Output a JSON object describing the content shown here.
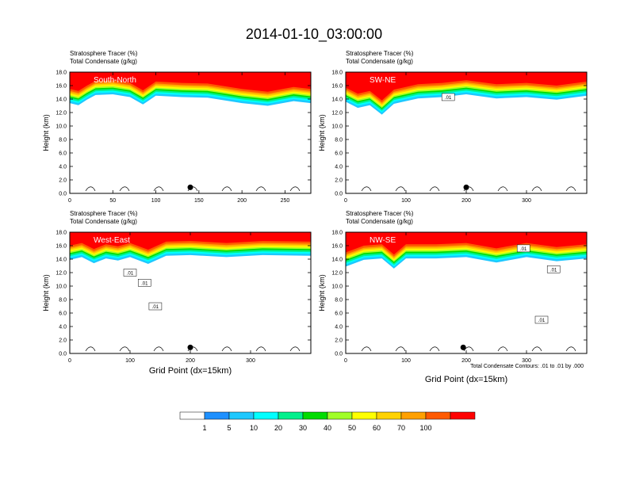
{
  "title": "2014-01-10_03:00:00",
  "xaxis_title": "Grid Point (dx=15km)",
  "contour_note": "Total Condensate Contours: .01 to .01 by .000",
  "colorbar": {
    "levels": [
      "1",
      "5",
      "10",
      "20",
      "30",
      "40",
      "50",
      "60",
      "70",
      "100"
    ],
    "colors": [
      "#ffffff",
      "#1e90ff",
      "#1ec8ff",
      "#00ffff",
      "#00f08c",
      "#00dc00",
      "#a0ff28",
      "#ffff00",
      "#ffd200",
      "#ffa000",
      "#ff5a00",
      "#ff0000"
    ]
  },
  "chart_data": [
    {
      "type": "heatmap",
      "panel_label": "South-North",
      "left_string_1": "Stratosphere Tracer   (%)",
      "left_string_2": "Total Condensate   (g/kg)",
      "ylabel": "Height (km)",
      "xlim": [
        0,
        280
      ],
      "ylim": [
        0,
        18
      ],
      "xticks": [
        "0",
        "50",
        "100",
        "150",
        "200",
        "250"
      ],
      "xtick_values": [
        0,
        50,
        100,
        150,
        200,
        250
      ],
      "yticks": [
        "0.0",
        "2.0",
        "4.0",
        "6.0",
        "8.0",
        "10.0",
        "12.0",
        "14.0",
        "16.0",
        "18.0"
      ],
      "marker_x": 140,
      "tropopause": [
        [
          0,
          14.3
        ],
        [
          10,
          14.0
        ],
        [
          20,
          14.8
        ],
        [
          30,
          15.5
        ],
        [
          50,
          15.6
        ],
        [
          70,
          15.2
        ],
        [
          85,
          14.1
        ],
        [
          100,
          15.4
        ],
        [
          130,
          15.2
        ],
        [
          160,
          15.1
        ],
        [
          200,
          14.3
        ],
        [
          230,
          13.9
        ],
        [
          260,
          14.6
        ],
        [
          280,
          14.3
        ]
      ],
      "contour_labels": []
    },
    {
      "type": "heatmap",
      "panel_label": "SW-NE",
      "left_string_1": "Stratosphere Tracer   (%)",
      "left_string_2": "Total Condensate   (g/kg)",
      "ylabel": "Height (km)",
      "xlim": [
        0,
        400
      ],
      "ylim": [
        0,
        18
      ],
      "xticks": [
        "0",
        "100",
        "200",
        "300"
      ],
      "xtick_values": [
        0,
        100,
        200,
        300
      ],
      "yticks": [
        "0.0",
        "2.0",
        "4.0",
        "6.0",
        "8.0",
        "10.0",
        "12.0",
        "14.0",
        "16.0",
        "18.0"
      ],
      "marker_x": 200,
      "tropopause": [
        [
          0,
          14.5
        ],
        [
          20,
          13.6
        ],
        [
          40,
          14.0
        ],
        [
          60,
          12.6
        ],
        [
          80,
          14.2
        ],
        [
          120,
          15.0
        ],
        [
          160,
          15.2
        ],
        [
          200,
          15.6
        ],
        [
          250,
          15.0
        ],
        [
          300,
          15.2
        ],
        [
          350,
          14.8
        ],
        [
          400,
          15.4
        ]
      ],
      "contour_labels": [
        {
          "text": ".01",
          "x": 170,
          "y": 14.3
        }
      ]
    },
    {
      "type": "heatmap",
      "panel_label": "West-East",
      "left_string_1": "Stratosphere Tracer   (%)",
      "left_string_2": "Total Condensate   (g/kg)",
      "ylabel": "Height (km)",
      "xlim": [
        0,
        400
      ],
      "ylim": [
        0,
        18
      ],
      "xticks": [
        "0",
        "100",
        "200",
        "300"
      ],
      "xtick_values": [
        0,
        100,
        200,
        300
      ],
      "yticks": [
        "0.0",
        "2.0",
        "4.0",
        "6.0",
        "8.0",
        "10.0",
        "12.0",
        "14.0",
        "16.0",
        "18.0"
      ],
      "marker_x": 200,
      "tropopause": [
        [
          0,
          14.8
        ],
        [
          20,
          15.2
        ],
        [
          40,
          14.3
        ],
        [
          60,
          15.0
        ],
        [
          80,
          14.7
        ],
        [
          100,
          15.2
        ],
        [
          130,
          14.2
        ],
        [
          160,
          15.4
        ],
        [
          200,
          15.5
        ],
        [
          260,
          15.2
        ],
        [
          320,
          15.5
        ],
        [
          400,
          15.4
        ]
      ],
      "contour_labels": [
        {
          "text": ".01",
          "x": 100,
          "y": 12.0
        },
        {
          "text": ".01",
          "x": 124,
          "y": 10.5
        },
        {
          "text": ".01",
          "x": 142,
          "y": 7.0
        }
      ]
    },
    {
      "type": "heatmap",
      "panel_label": "NW-SE",
      "left_string_1": "Stratosphere Tracer   (%)",
      "left_string_2": "Total Condensate   (g/kg)",
      "ylabel": "Height (km)",
      "xlim": [
        0,
        400
      ],
      "ylim": [
        0,
        18
      ],
      "xticks": [
        "0",
        "100",
        "200",
        "300"
      ],
      "xtick_values": [
        0,
        100,
        200,
        300
      ],
      "yticks": [
        "0.0",
        "2.0",
        "4.0",
        "6.0",
        "8.0",
        "10.0",
        "12.0",
        "14.0",
        "16.0",
        "18.0"
      ],
      "marker_x": 195,
      "tropopause": [
        [
          0,
          13.8
        ],
        [
          30,
          14.8
        ],
        [
          60,
          15.0
        ],
        [
          80,
          13.5
        ],
        [
          100,
          15.0
        ],
        [
          150,
          15.0
        ],
        [
          200,
          15.2
        ],
        [
          250,
          14.4
        ],
        [
          300,
          15.2
        ],
        [
          350,
          14.6
        ],
        [
          400,
          15.0
        ]
      ],
      "contour_labels": [
        {
          "text": ".01",
          "x": 295,
          "y": 15.6
        },
        {
          "text": ".01",
          "x": 345,
          "y": 12.5
        },
        {
          "text": ".01",
          "x": 325,
          "y": 5.0
        }
      ]
    }
  ]
}
